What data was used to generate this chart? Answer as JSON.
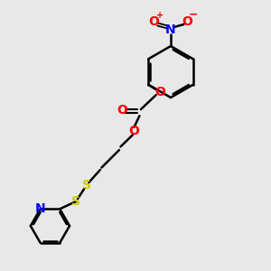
{
  "bg_color": "#e8e8e8",
  "bond_color": "#000000",
  "oxygen_color": "#ff0000",
  "nitrogen_color": "#0000ff",
  "sulfur_color": "#cccc00",
  "figsize": [
    3.0,
    3.0
  ],
  "dpi": 100,
  "xlim": [
    0,
    10
  ],
  "ylim": [
    0,
    10
  ]
}
